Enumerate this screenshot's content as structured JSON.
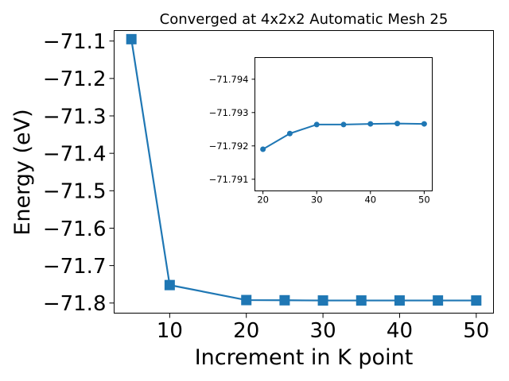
{
  "chart_data": [
    {
      "type": "line",
      "title": "Converged at 4x2x2 Automatic Mesh 25",
      "xlabel": "Increment in K point",
      "ylabel": "Energy (eV)",
      "x": [
        5,
        10,
        20,
        25,
        30,
        35,
        40,
        45,
        50
      ],
      "series": [
        {
          "values": [
            -71.095,
            -71.752,
            -71.7921,
            -71.7926,
            -71.7932,
            -71.7932,
            -71.7932,
            -71.7932,
            -71.7932
          ]
        }
      ],
      "xlim": [
        2.75,
        52.25
      ],
      "ylim": [
        -71.827,
        -71.072
      ],
      "xticks": [
        10,
        20,
        30,
        40,
        50
      ],
      "xtick_labels": [
        "10",
        "20",
        "30",
        "40",
        "50"
      ],
      "yticks": [
        -71.8,
        -71.7,
        -71.6,
        -71.5,
        -71.4,
        -71.3,
        -71.2,
        -71.1
      ],
      "ytick_labels": [
        "−71.8",
        "−71.7",
        "−71.6",
        "−71.5",
        "−71.4",
        "−71.3",
        "−71.2",
        "−71.1"
      ],
      "marker": "square",
      "color": "#1f77b4",
      "grid": false
    },
    {
      "type": "line",
      "title": "",
      "xlabel": "",
      "ylabel": "",
      "x": [
        20,
        25,
        30,
        35,
        40,
        45,
        50
      ],
      "series": [
        {
          "values": [
            -71.7919,
            -71.79237,
            -71.79264,
            -71.79264,
            -71.79266,
            -71.79267,
            -71.79266
          ]
        }
      ],
      "xlim": [
        18.5,
        51.5
      ],
      "ylim": [
        -71.79065,
        -71.79465
      ],
      "xticks": [
        20,
        30,
        40,
        50
      ],
      "xtick_labels": [
        "20",
        "30",
        "40",
        "50"
      ],
      "yticks": [
        -71.794,
        -71.793,
        -71.792,
        -71.791
      ],
      "ytick_labels": [
        "−71.794",
        "−71.793",
        "−71.792",
        "−71.791"
      ],
      "marker": "circle",
      "color": "#1f77b4",
      "grid": false
    }
  ]
}
